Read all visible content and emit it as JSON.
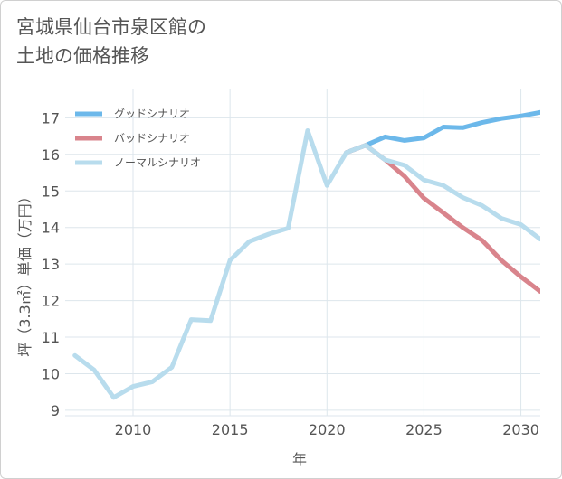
{
  "title_line1": "宮城県仙台市泉区館の",
  "title_line2": "土地の価格推移",
  "chart_data": {
    "type": "line",
    "xlabel": "年",
    "ylabel": "坪（3.3㎡）単価（万円）",
    "xlim": [
      2006.5,
      2031
    ],
    "ylim": [
      8.85,
      17.8
    ],
    "xticks": [
      2010,
      2015,
      2020,
      2025,
      2030
    ],
    "yticks": [
      9,
      10,
      11,
      12,
      13,
      14,
      15,
      16,
      17
    ],
    "grid": true,
    "legend_position": "top-left",
    "series": [
      {
        "name": "グッドシナリオ",
        "color": "#6cb8ea",
        "x": [
          2021,
          2022,
          2023,
          2024,
          2025,
          2026,
          2027,
          2028,
          2029,
          2030,
          2031
        ],
        "values": [
          16.05,
          16.25,
          16.48,
          16.38,
          16.45,
          16.75,
          16.73,
          16.87,
          16.98,
          17.05,
          17.15
        ]
      },
      {
        "name": "バッドシナリオ",
        "color": "#d9848c",
        "x": [
          2021,
          2022,
          2023,
          2024,
          2025,
          2026,
          2027,
          2028,
          2029,
          2030,
          2031
        ],
        "values": [
          16.05,
          16.25,
          15.85,
          15.4,
          14.8,
          14.4,
          14.0,
          13.65,
          13.1,
          12.65,
          12.25
        ]
      },
      {
        "name": "ノーマルシナリオ",
        "color": "#b8dced",
        "x": [
          2007,
          2008,
          2009,
          2010,
          2011,
          2012,
          2013,
          2014,
          2015,
          2016,
          2017,
          2018,
          2019,
          2020,
          2021,
          2022,
          2023,
          2024,
          2025,
          2026,
          2027,
          2028,
          2029,
          2030,
          2031
        ],
        "values": [
          10.5,
          10.1,
          9.35,
          9.65,
          9.78,
          10.18,
          11.48,
          11.45,
          13.1,
          13.62,
          13.82,
          13.98,
          16.65,
          15.15,
          16.05,
          16.25,
          15.85,
          15.7,
          15.3,
          15.15,
          14.82,
          14.6,
          14.25,
          14.08,
          13.68
        ]
      }
    ]
  }
}
